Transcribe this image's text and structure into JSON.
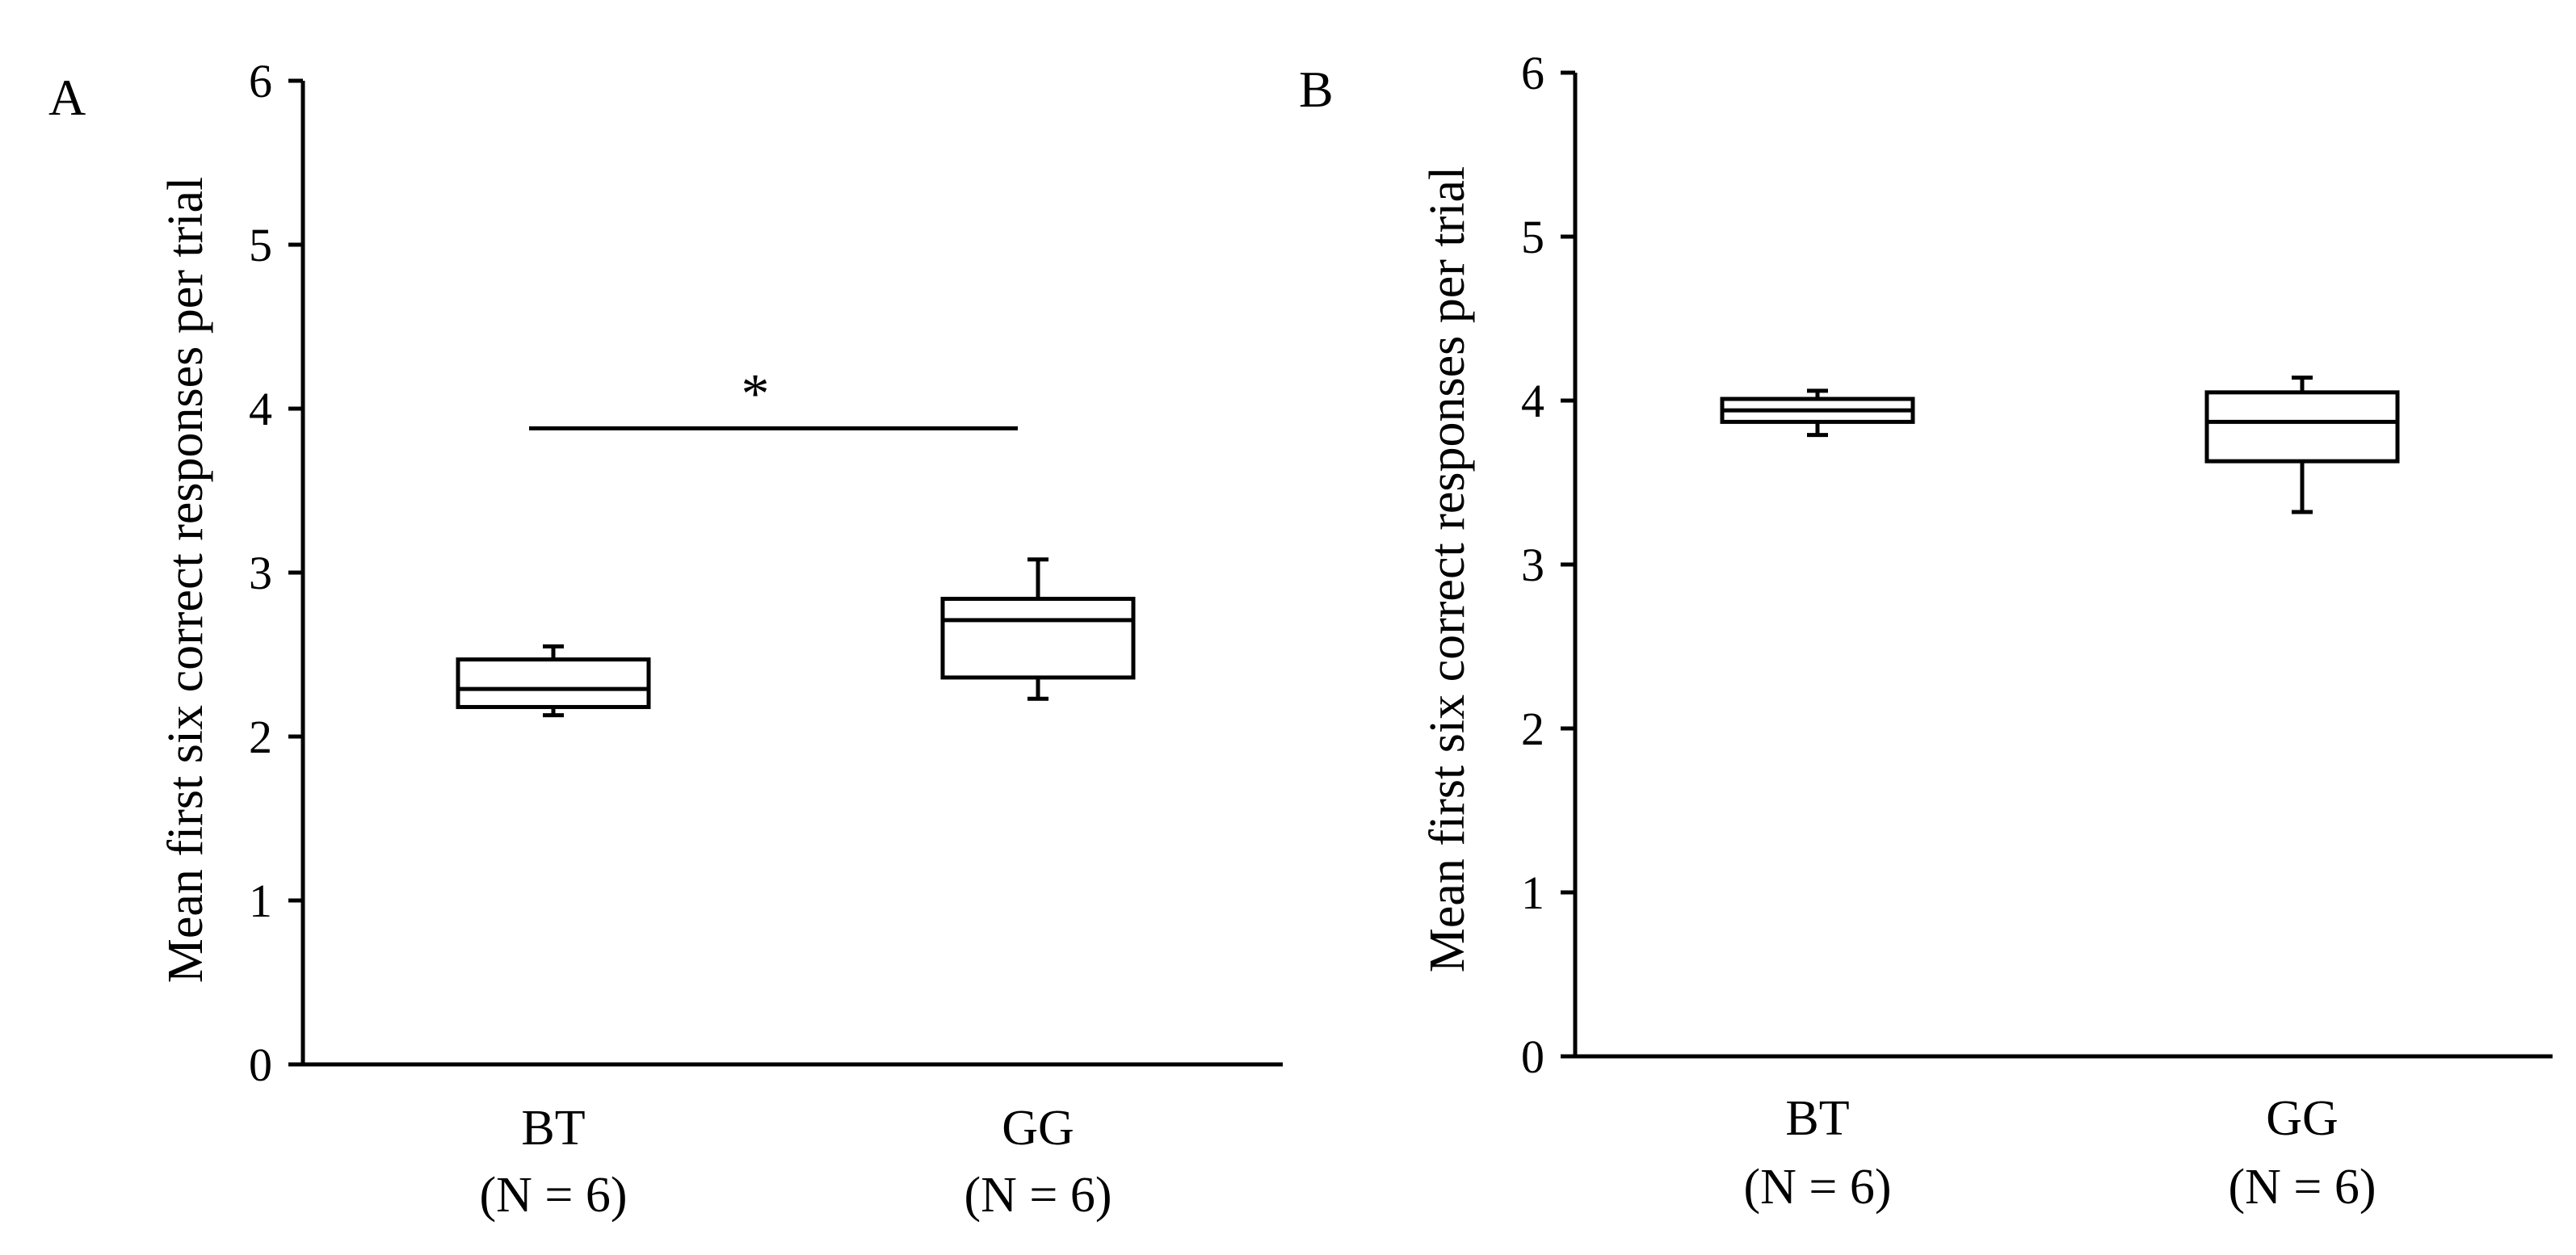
{
  "chart_data": [
    {
      "panel": "A",
      "type": "boxplot",
      "ylabel": "Mean first six correct responses per trial",
      "ylim": [
        0,
        6
      ],
      "yticks": [
        "0",
        "1",
        "2",
        "3",
        "4",
        "5",
        "6"
      ],
      "categories": [
        {
          "name": "BT",
          "n_label": "(N = 6)"
        },
        {
          "name": "GG",
          "n_label": "(N = 6)"
        }
      ],
      "boxes": [
        {
          "category": "BT",
          "whisker_low": 2.13,
          "q1": 2.18,
          "median": 2.29,
          "q3": 2.47,
          "whisker_high": 2.55
        },
        {
          "category": "GG",
          "whisker_low": 2.23,
          "q1": 2.36,
          "median": 2.71,
          "q3": 2.84,
          "whisker_high": 3.08
        }
      ],
      "significance": {
        "label": "*",
        "level": 3.88,
        "between": [
          "BT",
          "GG"
        ]
      }
    },
    {
      "panel": "B",
      "type": "boxplot",
      "ylabel": "Mean first six correct responses per trial",
      "ylim": [
        0,
        6
      ],
      "yticks": [
        "0",
        "1",
        "2",
        "3",
        "4",
        "5",
        "6"
      ],
      "categories": [
        {
          "name": "BT",
          "n_label": "(N = 6)"
        },
        {
          "name": "GG",
          "n_label": "(N = 6)"
        }
      ],
      "boxes": [
        {
          "category": "BT",
          "whisker_low": 3.79,
          "q1": 3.87,
          "median": 3.94,
          "q3": 4.01,
          "whisker_high": 4.06
        },
        {
          "category": "GG",
          "whisker_low": 3.32,
          "q1": 3.63,
          "median": 3.87,
          "q3": 4.05,
          "whisker_high": 4.14
        }
      ]
    }
  ]
}
